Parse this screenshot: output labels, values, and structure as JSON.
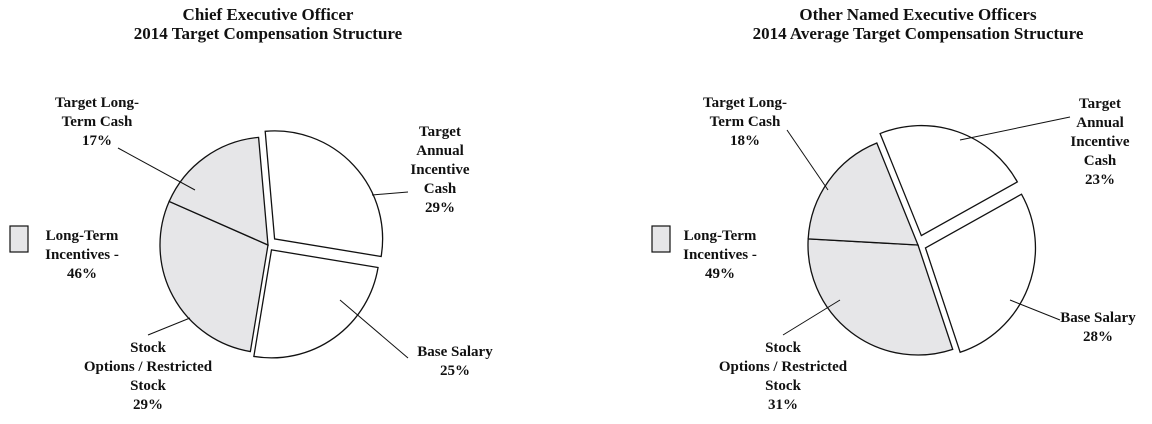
{
  "chart_data": [
    {
      "type": "pie",
      "title": [
        "Chief Executive Officer",
        "2014 Target Compensation Structure"
      ],
      "categories": [
        [
          "Target",
          "Annual",
          "Incentive",
          "Cash"
        ],
        [
          "Base Salary"
        ],
        [
          "Stock",
          "Options / Restricted",
          "Stock"
        ],
        [
          "Target Long-",
          "Term Cash"
        ]
      ],
      "values": [
        29,
        25,
        29,
        17
      ],
      "value_labels": [
        "29%",
        "25%",
        "29%",
        "17%"
      ],
      "colors": [
        "#ffffff",
        "#ffffff",
        "#e6e6e8",
        "#e6e6e8"
      ],
      "legend": {
        "label": [
          "Long-Term",
          "Incentives -"
        ],
        "value_label": "46%",
        "color": "#e6e6e8"
      }
    },
    {
      "type": "pie",
      "title": [
        "Other Named Executive Officers",
        "2014 Average Target Compensation Structure"
      ],
      "categories": [
        [
          "Target",
          "Annual",
          "Incentive",
          "Cash"
        ],
        [
          "Base Salary"
        ],
        [
          "Stock",
          "Options / Restricted",
          "Stock"
        ],
        [
          "Target Long-",
          "Term Cash"
        ]
      ],
      "values": [
        23,
        28,
        31,
        18
      ],
      "value_labels": [
        "23%",
        "28%",
        "31%",
        "18%"
      ],
      "colors": [
        "#ffffff",
        "#ffffff",
        "#e6e6e8",
        "#e6e6e8"
      ],
      "legend": {
        "label": [
          "Long-Term",
          "Incentives -"
        ],
        "value_label": "49%",
        "color": "#e6e6e8"
      }
    }
  ]
}
